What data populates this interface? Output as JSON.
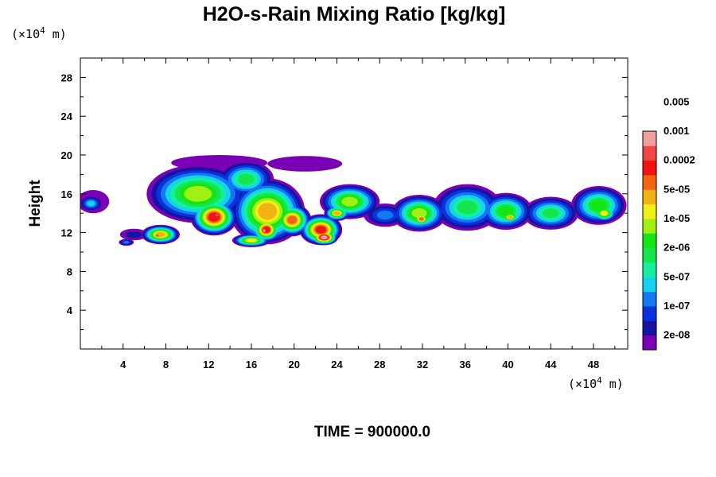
{
  "chart_data": {
    "type": "heatmap",
    "title": "H2O-s-Rain Mixing Ratio [kg/kg]",
    "ylabel": "Height",
    "x_unit_label": "(×10⁴ m)",
    "y_unit_label": "(×10⁴ m)",
    "x_unit_prefix": "(×10",
    "x_unit_exp": "4",
    "x_unit_suffix": " m)",
    "y_unit_prefix": "(×10",
    "y_unit_exp": "4",
    "y_unit_suffix": " m)",
    "xlim": [
      0,
      51.2
    ],
    "ylim": [
      0,
      30
    ],
    "x_ticks": [
      4,
      8,
      12,
      16,
      20,
      24,
      28,
      32,
      36,
      40,
      44,
      48
    ],
    "x_tick_labels": [
      "4",
      "8",
      "12",
      "16",
      "20",
      "24",
      "28",
      "32",
      "36",
      "40",
      "44",
      "48"
    ],
    "y_ticks": [
      4,
      8,
      12,
      16,
      20,
      24,
      28
    ],
    "y_tick_labels": [
      "4",
      "8",
      "12",
      "16",
      "20",
      "24",
      "28"
    ],
    "time_label": "TIME = 900000.0",
    "colorbar": {
      "levels": [
        "2e-08",
        "1e-07",
        "5e-07",
        "2e-06",
        "1e-05",
        "5e-05",
        "0.0002",
        "0.001",
        "0.005"
      ],
      "colors": [
        "#7a00b4",
        "#1414a0",
        "#0a32dc",
        "#1478f0",
        "#14d2f0",
        "#14f0a0",
        "#14e650",
        "#14e614",
        "#a0f014",
        "#f0f014",
        "#f0b414",
        "#f06414",
        "#f01414",
        "#f04646",
        "#f0a0a0"
      ]
    },
    "blobs": [
      {
        "x": 1.2,
        "y": 15.2,
        "rx": 1.5,
        "ry": 1.2,
        "v": 0.0
      },
      {
        "x": 1.0,
        "y": 15.0,
        "rx": 1.1,
        "ry": 0.8,
        "v": 0.25
      },
      {
        "x": 4.3,
        "y": 11.0,
        "rx": 0.7,
        "ry": 0.35,
        "v": 0.2
      },
      {
        "x": 5.0,
        "y": 11.8,
        "rx": 1.3,
        "ry": 0.6,
        "v": 0.1
      },
      {
        "x": 7.5,
        "y": 11.8,
        "rx": 1.8,
        "ry": 1.0,
        "v": 0.7
      },
      {
        "x": 7.2,
        "y": 11.7,
        "rx": 0.6,
        "ry": 0.5,
        "v": 0.82
      },
      {
        "x": 13.0,
        "y": 19.2,
        "rx": 4.5,
        "ry": 0.8,
        "v": 0.0
      },
      {
        "x": 21.0,
        "y": 19.1,
        "rx": 3.5,
        "ry": 0.8,
        "v": 0.0
      },
      {
        "x": 11.0,
        "y": 16.0,
        "rx": 4.8,
        "ry": 3.0,
        "v": 0.55
      },
      {
        "x": 12.5,
        "y": 13.6,
        "rx": 2.2,
        "ry": 1.9,
        "v": 0.85
      },
      {
        "x": 12.8,
        "y": 13.8,
        "rx": 0.8,
        "ry": 0.6,
        "v": 0.93
      },
      {
        "x": 15.5,
        "y": 17.5,
        "rx": 2.6,
        "ry": 1.9,
        "v": 0.4
      },
      {
        "x": 17.5,
        "y": 14.2,
        "rx": 3.5,
        "ry": 3.4,
        "v": 0.72
      },
      {
        "x": 17.4,
        "y": 12.3,
        "rx": 1.4,
        "ry": 1.3,
        "v": 0.87
      },
      {
        "x": 17.2,
        "y": 12.2,
        "rx": 0.45,
        "ry": 0.7,
        "v": 1.0
      },
      {
        "x": 19.8,
        "y": 13.3,
        "rx": 1.8,
        "ry": 1.7,
        "v": 0.8
      },
      {
        "x": 22.5,
        "y": 12.3,
        "rx": 2.0,
        "ry": 1.6,
        "v": 0.86
      },
      {
        "x": 22.8,
        "y": 11.5,
        "rx": 1.3,
        "ry": 0.8,
        "v": 1.0
      },
      {
        "x": 16.0,
        "y": 11.2,
        "rx": 1.8,
        "ry": 0.7,
        "v": 0.62
      },
      {
        "x": 25.2,
        "y": 15.2,
        "rx": 2.8,
        "ry": 1.8,
        "v": 0.55
      },
      {
        "x": 24.0,
        "y": 14.0,
        "rx": 1.2,
        "ry": 0.8,
        "v": 0.72
      },
      {
        "x": 28.5,
        "y": 13.8,
        "rx": 2.0,
        "ry": 1.2,
        "v": 0.2
      },
      {
        "x": 31.7,
        "y": 14.0,
        "rx": 2.6,
        "ry": 1.9,
        "v": 0.6
      },
      {
        "x": 31.9,
        "y": 13.4,
        "rx": 0.9,
        "ry": 0.7,
        "v": 0.8
      },
      {
        "x": 36.2,
        "y": 14.6,
        "rx": 3.2,
        "ry": 2.4,
        "v": 0.45
      },
      {
        "x": 39.8,
        "y": 14.2,
        "rx": 2.5,
        "ry": 1.9,
        "v": 0.48
      },
      {
        "x": 40.2,
        "y": 13.6,
        "rx": 0.9,
        "ry": 0.6,
        "v": 0.72
      },
      {
        "x": 44.0,
        "y": 14.0,
        "rx": 2.6,
        "ry": 1.7,
        "v": 0.44
      },
      {
        "x": 48.5,
        "y": 14.8,
        "rx": 2.6,
        "ry": 2.0,
        "v": 0.5
      },
      {
        "x": 49.0,
        "y": 14.0,
        "rx": 1.2,
        "ry": 0.9,
        "v": 0.66
      }
    ]
  }
}
